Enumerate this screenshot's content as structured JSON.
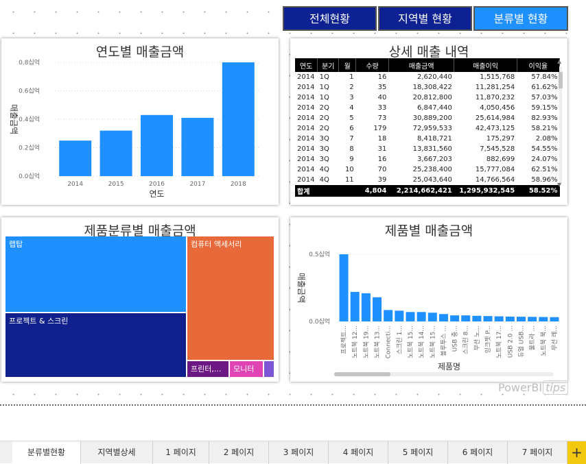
{
  "nav": {
    "overall": "전체현황",
    "regional": "지역별 현황",
    "category": "분류별 현황"
  },
  "colors": {
    "bar": "#1e90ff",
    "nav_dark": "#0d2192",
    "nav_light": "#1e90ff",
    "add_tab": "#f2c811"
  },
  "chart_data": [
    {
      "type": "bar",
      "title": "연도별 매출금액",
      "xlabel": "연도",
      "ylabel": "매출금액",
      "categories": [
        "2014",
        "2015",
        "2016",
        "2017",
        "2018"
      ],
      "values": [
        0.25,
        0.32,
        0.43,
        0.41,
        0.8
      ],
      "yticks": [
        "0.0십억",
        "0.2십억",
        "0.4십억",
        "0.6십억",
        "0.8십억"
      ],
      "ylim": [
        0,
        0.8
      ]
    },
    {
      "type": "bar",
      "title": "제품별 매출금액",
      "xlabel": "제품명",
      "ylabel": "매출금액",
      "categories": [
        "프로젝트...",
        "노트북 12...",
        "노트북 19...",
        "노트북 13...",
        "Connecti...",
        "스크린 1...",
        "노트북 15...",
        "노트북 14...",
        "노트북 15...",
        "블루투스 ...",
        "USB 충...",
        "스크린 8...",
        "무선 노...",
        "잉크젯 P...",
        "노트북 17...",
        "USB 2.0 ...",
        "듀얼 USB...",
        "울트라 ...",
        "노트북 북...",
        "무선 레..."
      ],
      "values": [
        0.5,
        0.22,
        0.21,
        0.18,
        0.085,
        0.08,
        0.07,
        0.07,
        0.065,
        0.055,
        0.045,
        0.045,
        0.042,
        0.04,
        0.038,
        0.036,
        0.035,
        0.034,
        0.033,
        0.032
      ],
      "yticks": [
        "0.0십억",
        "0.5십억"
      ],
      "ylim": [
        0,
        0.5
      ]
    }
  ],
  "detail_table": {
    "title": "상세 매출 내역",
    "columns": [
      "연도",
      "분기",
      "월",
      "수량",
      "매출금액",
      "매출이익",
      "이익율"
    ],
    "rows": [
      [
        "2014",
        "1Q",
        "1",
        "16",
        "2,620,440",
        "1,515,768",
        "57.84%"
      ],
      [
        "2014",
        "1Q",
        "2",
        "35",
        "18,308,422",
        "11,281,254",
        "61.62%"
      ],
      [
        "2014",
        "1Q",
        "3",
        "40",
        "20,812,800",
        "11,870,232",
        "57.03%"
      ],
      [
        "2014",
        "2Q",
        "4",
        "33",
        "6,847,440",
        "4,050,456",
        "59.15%"
      ],
      [
        "2014",
        "2Q",
        "5",
        "73",
        "30,889,200",
        "25,614,984",
        "82.93%"
      ],
      [
        "2014",
        "2Q",
        "6",
        "179",
        "72,959,533",
        "42,473,125",
        "58.21%"
      ],
      [
        "2014",
        "3Q",
        "7",
        "18",
        "8,418,721",
        "175,297",
        "2.08%"
      ],
      [
        "2014",
        "3Q",
        "8",
        "31",
        "13,831,560",
        "7,545,528",
        "54.55%"
      ],
      [
        "2014",
        "3Q",
        "9",
        "16",
        "3,667,203",
        "882,699",
        "24.07%"
      ],
      [
        "2014",
        "4Q",
        "10",
        "70",
        "25,238,400",
        "15,777,084",
        "62.51%"
      ],
      [
        "2014",
        "4Q",
        "11",
        "39",
        "25,043,640",
        "14,766,564",
        "58.96%"
      ]
    ],
    "total": [
      "합계",
      "",
      "",
      "4,804",
      "2,214,662,421",
      "1,295,932,545",
      "58.52%"
    ]
  },
  "treemap": {
    "title": "제품분류별 매출금액",
    "cells": [
      {
        "label": "랩탑",
        "color": "#1e90ff"
      },
      {
        "label": "프로젝트 & 스크린",
        "color": "#10208c"
      },
      {
        "label": "컴퓨터 액세서리",
        "color": "#e8693a"
      },
      {
        "label": "프린터,...",
        "color": "#6b1784"
      },
      {
        "label": "모니터",
        "color": "#e043b4"
      },
      {
        "label": "",
        "color": "#7b57d6"
      }
    ]
  },
  "watermark": {
    "brand": "PowerBI",
    "tips": "tips"
  },
  "tabs": [
    "분류별현황",
    "지역별상세",
    "1 페이지",
    "2 페이지",
    "3 페이지",
    "4 페이지",
    "5 페이지",
    "6 페이지",
    "7 페이지"
  ],
  "add_tab_label": "+"
}
